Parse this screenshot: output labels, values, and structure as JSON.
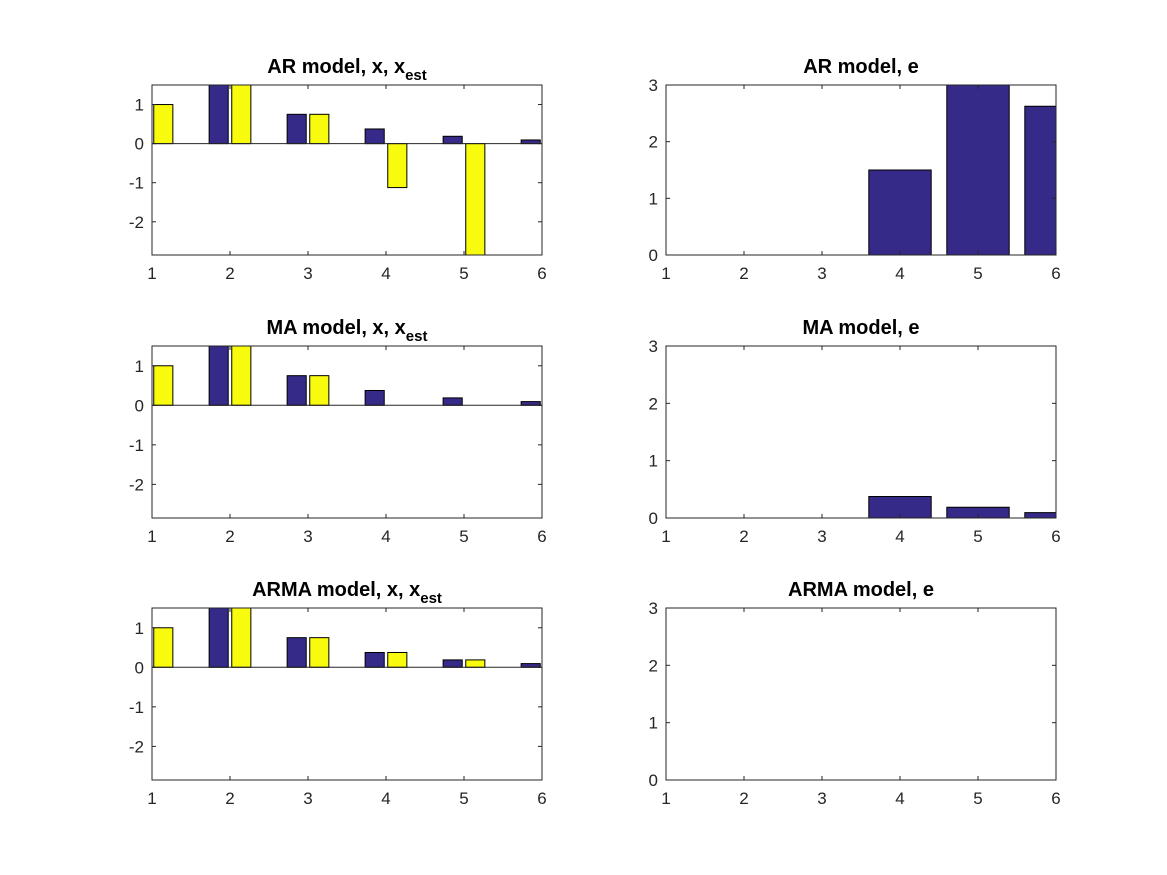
{
  "figure": {
    "background": "#ffffff"
  },
  "colors": {
    "x_series": "#352a87",
    "x_est_series": "#f9fb0e",
    "e_series": "#352a87",
    "axis": "#262626"
  },
  "chart_data": [
    {
      "type": "bar",
      "title": {
        "main": "AR model, x, x",
        "sub": "est"
      },
      "xlim": [
        1,
        6
      ],
      "ylim": [
        -2.85,
        1.5
      ],
      "xticks": [
        1,
        2,
        3,
        4,
        5,
        6
      ],
      "yticks": [
        -2,
        -1,
        0,
        1
      ],
      "categories": [
        1,
        2,
        3,
        4,
        5,
        6
      ],
      "series": [
        {
          "values": [
            0,
            1.5,
            0.75,
            0.375,
            0.1875,
            0.09375
          ],
          "color": "#352a87"
        },
        {
          "values": [
            1,
            1.5,
            0.75,
            -1.125,
            -2.85,
            0
          ],
          "color": "#f9fb0e"
        }
      ],
      "grid": false
    },
    {
      "type": "bar",
      "title": {
        "main": "AR model, e",
        "sub": ""
      },
      "xlim": [
        1,
        6
      ],
      "ylim": [
        0,
        3
      ],
      "xticks": [
        1,
        2,
        3,
        4,
        5,
        6
      ],
      "yticks": [
        0,
        1,
        2,
        3
      ],
      "categories": [
        1,
        2,
        3,
        4,
        5,
        6
      ],
      "series": [
        {
          "values": [
            0,
            0,
            0,
            1.5,
            3.0,
            2.625
          ],
          "color": "#352a87"
        }
      ],
      "grid": false
    },
    {
      "type": "bar",
      "title": {
        "main": "MA model, x, x",
        "sub": "est"
      },
      "xlim": [
        1,
        6
      ],
      "ylim": [
        -2.85,
        1.5
      ],
      "xticks": [
        1,
        2,
        3,
        4,
        5,
        6
      ],
      "yticks": [
        -2,
        -1,
        0,
        1
      ],
      "categories": [
        1,
        2,
        3,
        4,
        5,
        6
      ],
      "series": [
        {
          "values": [
            0,
            1.5,
            0.75,
            0.375,
            0.1875,
            0.09375
          ],
          "color": "#352a87"
        },
        {
          "values": [
            1,
            1.5,
            0.75,
            0,
            0,
            0
          ],
          "color": "#f9fb0e"
        }
      ],
      "grid": false
    },
    {
      "type": "bar",
      "title": {
        "main": "MA model, e",
        "sub": ""
      },
      "xlim": [
        1,
        6
      ],
      "ylim": [
        0,
        3
      ],
      "xticks": [
        1,
        2,
        3,
        4,
        5,
        6
      ],
      "yticks": [
        0,
        1,
        2,
        3
      ],
      "categories": [
        1,
        2,
        3,
        4,
        5,
        6
      ],
      "series": [
        {
          "values": [
            0,
            0,
            0,
            0.375,
            0.1875,
            0.09375
          ],
          "color": "#352a87"
        }
      ],
      "grid": false
    },
    {
      "type": "bar",
      "title": {
        "main": "ARMA model, x, x",
        "sub": "est"
      },
      "xlim": [
        1,
        6
      ],
      "ylim": [
        -2.85,
        1.5
      ],
      "xticks": [
        1,
        2,
        3,
        4,
        5,
        6
      ],
      "yticks": [
        -2,
        -1,
        0,
        1
      ],
      "categories": [
        1,
        2,
        3,
        4,
        5,
        6
      ],
      "series": [
        {
          "values": [
            0,
            1.5,
            0.75,
            0.375,
            0.1875,
            0.09375
          ],
          "color": "#352a87"
        },
        {
          "values": [
            1,
            1.5,
            0.75,
            0.375,
            0.1875,
            0
          ],
          "color": "#f9fb0e"
        }
      ],
      "grid": false
    },
    {
      "type": "bar",
      "title": {
        "main": "ARMA model, e",
        "sub": ""
      },
      "xlim": [
        1,
        6
      ],
      "ylim": [
        0,
        3
      ],
      "xticks": [
        1,
        2,
        3,
        4,
        5,
        6
      ],
      "yticks": [
        0,
        1,
        2,
        3
      ],
      "categories": [
        1,
        2,
        3,
        4,
        5,
        6
      ],
      "series": [
        {
          "values": [
            0,
            0,
            0,
            0,
            0,
            0
          ],
          "color": "#352a87"
        }
      ],
      "grid": false
    }
  ]
}
